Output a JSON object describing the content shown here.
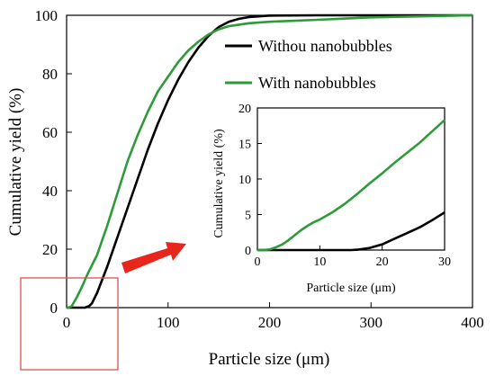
{
  "chart_data": [
    {
      "type": "line",
      "xlabel": "Particle size (μm)",
      "ylabel": "Cumulative yield (%)",
      "xlim": [
        0,
        400
      ],
      "ylim": [
        0,
        100
      ],
      "x_ticks": [
        "0",
        "100",
        "200",
        "300",
        "400"
      ],
      "y_ticks": [
        "0",
        "20",
        "40",
        "60",
        "80",
        "100"
      ],
      "grid": false,
      "legend": "top-right",
      "series": [
        {
          "name": "Withou nanobubbles",
          "color": "#000000",
          "points": [
            [
              0,
              0
            ],
            [
              10,
              0
            ],
            [
              18,
              0
            ],
            [
              22,
              0.5
            ],
            [
              25,
              1.5
            ],
            [
              30,
              5
            ],
            [
              40,
              14
            ],
            [
              50,
              24
            ],
            [
              60,
              34
            ],
            [
              70,
              44
            ],
            [
              80,
              54
            ],
            [
              90,
              63
            ],
            [
              100,
              71
            ],
            [
              110,
              78
            ],
            [
              120,
              84
            ],
            [
              130,
              89
            ],
            [
              140,
              93
            ],
            [
              150,
              96
            ],
            [
              160,
              97.8
            ],
            [
              170,
              98.8
            ],
            [
              180,
              99.4
            ],
            [
              200,
              99.9
            ],
            [
              250,
              100
            ],
            [
              300,
              100
            ],
            [
              400,
              100
            ]
          ]
        },
        {
          "name": "With nanobubbles",
          "color": "#2e9b3a",
          "points": [
            [
              0,
              0
            ],
            [
              2,
              0
            ],
            [
              5,
              0.5
            ],
            [
              10,
              3.5
            ],
            [
              15,
              7
            ],
            [
              20,
              11
            ],
            [
              30,
              18
            ],
            [
              40,
              28
            ],
            [
              50,
              39
            ],
            [
              60,
              50
            ],
            [
              70,
              59
            ],
            [
              80,
              67
            ],
            [
              90,
              74
            ],
            [
              100,
              79
            ],
            [
              110,
              84
            ],
            [
              120,
              88
            ],
            [
              130,
              91
            ],
            [
              140,
              93.5
            ],
            [
              150,
              95.2
            ],
            [
              160,
              96.3
            ],
            [
              180,
              97.3
            ],
            [
              200,
              97.8
            ],
            [
              250,
              98.5
            ],
            [
              300,
              99.3
            ],
            [
              400,
              100
            ]
          ]
        }
      ]
    },
    {
      "type": "line",
      "xlabel": "Particle size (μm)",
      "ylabel": "Cumulative yield (%)",
      "xlim": [
        0,
        30
      ],
      "ylim": [
        0,
        20
      ],
      "x_ticks": [
        "0",
        "10",
        "20",
        "30"
      ],
      "y_ticks": [
        "0",
        "5",
        "10",
        "15",
        "20"
      ],
      "grid": false,
      "series": [
        {
          "color": "#000000",
          "points": [
            [
              0,
              0
            ],
            [
              10,
              0
            ],
            [
              15,
              0
            ],
            [
              16,
              0.05
            ],
            [
              18,
              0.3
            ],
            [
              20,
              0.8
            ],
            [
              22,
              1.6
            ],
            [
              24,
              2.4
            ],
            [
              26,
              3.2
            ],
            [
              28,
              4.2
            ],
            [
              30,
              5.3
            ]
          ]
        },
        {
          "color": "#2e9b3a",
          "points": [
            [
              0,
              0
            ],
            [
              1,
              0
            ],
            [
              2,
              0.1
            ],
            [
              3,
              0.4
            ],
            [
              4,
              0.8
            ],
            [
              5,
              1.4
            ],
            [
              6,
              2.1
            ],
            [
              7,
              2.8
            ],
            [
              8,
              3.4
            ],
            [
              9,
              3.9
            ],
            [
              10,
              4.3
            ],
            [
              12,
              5.3
            ],
            [
              14,
              6.5
            ],
            [
              16,
              7.9
            ],
            [
              18,
              9.4
            ],
            [
              20,
              10.8
            ],
            [
              22,
              12.3
            ],
            [
              24,
              13.7
            ],
            [
              26,
              15.1
            ],
            [
              28,
              16.7
            ],
            [
              30,
              18.3
            ]
          ]
        }
      ]
    }
  ]
}
